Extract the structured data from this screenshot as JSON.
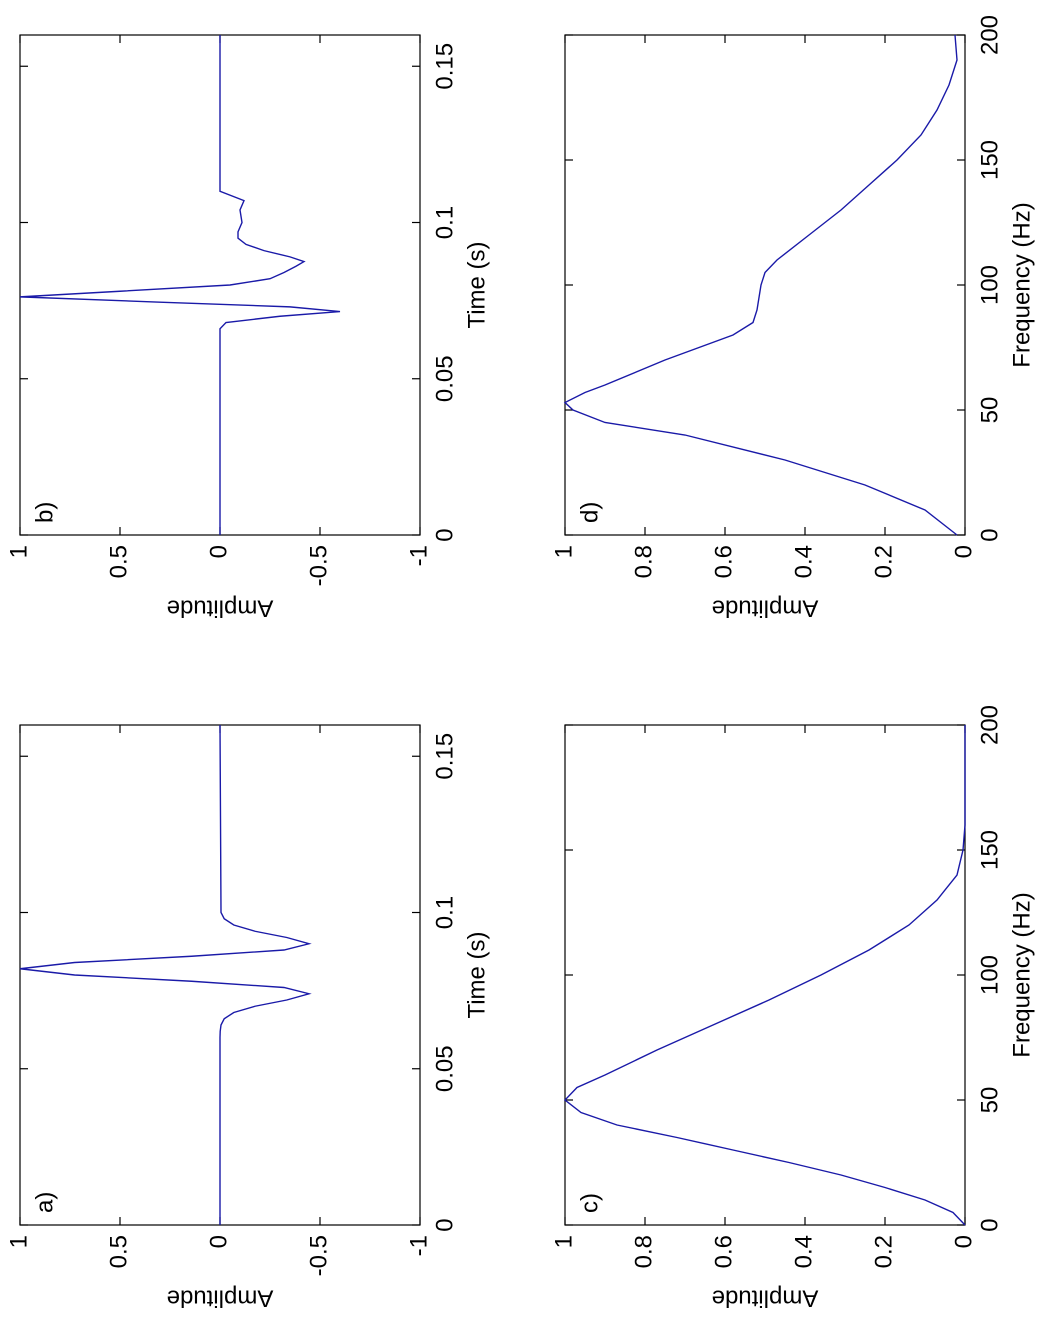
{
  "chart_data": [
    {
      "type": "line",
      "label": "a)",
      "xlabel": "Time (s)",
      "ylabel": "Amplitude",
      "color": "#1a1aa8",
      "xlim": [
        0,
        0.16
      ],
      "ylim": [
        -1,
        1
      ],
      "xticks": [
        0,
        0.05,
        0.1,
        0.15
      ],
      "yticks": [
        -1,
        -0.5,
        0,
        0.5,
        1
      ],
      "x": [
        0,
        0.06,
        0.062,
        0.064,
        0.066,
        0.068,
        0.07,
        0.072,
        0.074,
        0.076,
        0.078,
        0.08,
        0.082,
        0.084,
        0.086,
        0.088,
        0.09,
        0.092,
        0.094,
        0.096,
        0.098,
        0.1,
        0.16
      ],
      "values": [
        0,
        0,
        -0.001,
        -0.005,
        -0.021,
        -0.069,
        -0.175,
        -0.334,
        -0.445,
        -0.32,
        0.142,
        0.727,
        1,
        0.727,
        0.142,
        -0.32,
        -0.445,
        -0.334,
        -0.175,
        -0.069,
        -0.021,
        -0.005,
        0
      ]
    },
    {
      "type": "line",
      "label": "b)",
      "xlabel": "Time (s)",
      "ylabel": "Amplitude",
      "color": "#1a1aa8",
      "xlim": [
        0,
        0.16
      ],
      "ylim": [
        -1,
        1
      ],
      "xticks": [
        0,
        0.05,
        0.1,
        0.15
      ],
      "yticks": [
        -1,
        -0.5,
        0,
        0.5,
        1
      ],
      "x": [
        0,
        0.066,
        0.068,
        0.07,
        0.0715,
        0.073,
        0.0745,
        0.0762,
        0.078,
        0.08,
        0.082,
        0.084,
        0.086,
        0.0875,
        0.089,
        0.091,
        0.093,
        0.095,
        0.097,
        0.1,
        0.104,
        0.107,
        0.11,
        0.16
      ],
      "values": [
        0,
        0,
        -0.03,
        -0.3,
        -0.6,
        -0.35,
        0.3,
        1,
        0.5,
        -0.05,
        -0.25,
        -0.32,
        -0.38,
        -0.42,
        -0.35,
        -0.22,
        -0.13,
        -0.09,
        -0.09,
        -0.11,
        -0.1,
        -0.12,
        0,
        0
      ]
    },
    {
      "type": "line",
      "label": "c)",
      "xlabel": "Frequency (Hz)",
      "ylabel": "Amplitude",
      "color": "#1a1aa8",
      "xlim": [
        0,
        200
      ],
      "ylim": [
        0,
        1
      ],
      "xticks": [
        0,
        50,
        100,
        150,
        200
      ],
      "yticks": [
        0,
        0.2,
        0.4,
        0.6,
        0.8,
        1
      ],
      "x": [
        0,
        5,
        10,
        15,
        20,
        25,
        30,
        35,
        40,
        45,
        50,
        55,
        60,
        70,
        80,
        90,
        100,
        110,
        120,
        130,
        140,
        150,
        160,
        200
      ],
      "values": [
        0,
        0.03,
        0.1,
        0.2,
        0.31,
        0.44,
        0.58,
        0.72,
        0.87,
        0.96,
        1,
        0.97,
        0.9,
        0.77,
        0.63,
        0.49,
        0.36,
        0.24,
        0.14,
        0.07,
        0.02,
        0.005,
        0,
        0
      ]
    },
    {
      "type": "line",
      "label": "d)",
      "xlabel": "Frequency (Hz)",
      "ylabel": "Amplitude",
      "color": "#1a1aa8",
      "xlim": [
        0,
        200
      ],
      "ylim": [
        0,
        1
      ],
      "xticks": [
        0,
        50,
        100,
        150,
        200
      ],
      "yticks": [
        0,
        0.2,
        0.4,
        0.6,
        0.8,
        1
      ],
      "x": [
        0,
        10,
        20,
        30,
        40,
        45,
        50,
        53,
        57,
        60,
        70,
        80,
        85,
        90,
        100,
        105,
        110,
        120,
        130,
        140,
        150,
        160,
        170,
        180,
        190,
        200
      ],
      "values": [
        0.02,
        0.1,
        0.25,
        0.45,
        0.7,
        0.9,
        0.98,
        1,
        0.95,
        0.9,
        0.75,
        0.58,
        0.53,
        0.52,
        0.51,
        0.5,
        0.47,
        0.39,
        0.31,
        0.24,
        0.17,
        0.11,
        0.07,
        0.04,
        0.02,
        0.025
      ]
    }
  ]
}
